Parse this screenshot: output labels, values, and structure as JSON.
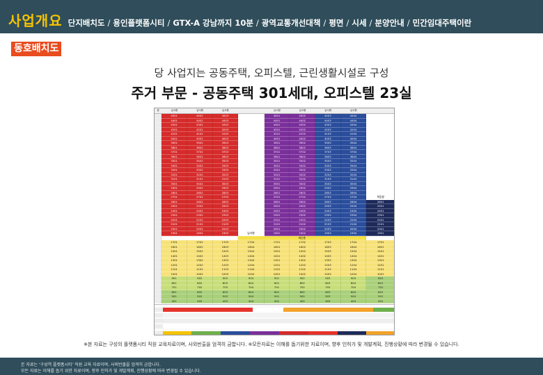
{
  "header": {
    "title": "사업개요",
    "nav": [
      "단지배치도",
      "용인플랫폼시티",
      "GTX-A 강남까지 10분",
      "광역교통개선대책",
      "평면",
      "시세",
      "분양안내",
      "민간임대주택이란"
    ],
    "separator": "/"
  },
  "section_tag": "동호배치도",
  "sub_heading": "당 사업지는 공동주택, 오피스텔, 근린생활시설로 구성",
  "main_heading": "주거 부문 - 공동주택 301세대, 오피스텔 23실",
  "table": {
    "headers": [
      "층",
      "남서향",
      "남서향",
      "남서향",
      "",
      "남서향",
      "남서향",
      "남서향",
      "남서향",
      ""
    ],
    "column_colors": [
      "#e8e8e8",
      "#d62b2b",
      "#d62b2b",
      "#d62b2b",
      "#ffffff",
      "#7a2f9a",
      "#7a2f9a",
      "#2a4d9c",
      "#2a4d9c",
      "#ffffff"
    ],
    "upper_rows": [
      [
        "4501",
        "4502",
        "4503",
        "",
        "4501",
        "4502",
        "4503",
        "4504"
      ],
      [
        "4401",
        "4402",
        "4403",
        "",
        "4401",
        "4402",
        "4403",
        "4404"
      ],
      [
        "4301",
        "4302",
        "4303",
        "",
        "4301",
        "4302",
        "4303",
        "4304"
      ],
      [
        "4201",
        "4202",
        "4203",
        "",
        "4201",
        "4202",
        "4203",
        "4204"
      ],
      [
        "4101",
        "4102",
        "4103",
        "",
        "4101",
        "4102",
        "4103",
        "4104"
      ],
      [
        "4001",
        "4002",
        "4003",
        "",
        "4001",
        "4002",
        "4003",
        "4004"
      ],
      [
        "3901",
        "3902",
        "3903",
        "",
        "3901",
        "3902",
        "3903",
        "3904"
      ],
      [
        "3801",
        "3802",
        "3803",
        "",
        "3801",
        "3802",
        "3803",
        "3804"
      ],
      [
        "3701",
        "3702",
        "3703",
        "",
        "3701",
        "3702",
        "3703",
        "3704"
      ],
      [
        "3601",
        "3602",
        "3603",
        "",
        "3601",
        "3602",
        "3603",
        "3604"
      ],
      [
        "3501",
        "3502",
        "3503",
        "",
        "3501",
        "3502",
        "3503",
        "3504"
      ],
      [
        "3401",
        "3402",
        "3403",
        "",
        "3401",
        "3402",
        "3403",
        "3404"
      ],
      [
        "3301",
        "3302",
        "3303",
        "",
        "3301",
        "3302",
        "3303",
        "3304"
      ],
      [
        "3201",
        "3202",
        "3203",
        "",
        "3201",
        "3202",
        "3203",
        "3204"
      ],
      [
        "3101",
        "3102",
        "3103",
        "",
        "3101",
        "3102",
        "3103",
        "3104"
      ],
      [
        "3001",
        "3002",
        "3003",
        "",
        "3001",
        "3002",
        "3003",
        "3004"
      ],
      [
        "2901",
        "2902",
        "2903",
        "",
        "2901",
        "2902",
        "2903",
        "2904"
      ],
      [
        "2801",
        "2802",
        "2803",
        "",
        "2801",
        "2802",
        "2803",
        "2804"
      ],
      [
        "2701",
        "2702",
        "2703",
        "",
        "2701",
        "2702",
        "2703",
        "2704"
      ],
      [
        "2601",
        "2602",
        "2603",
        "",
        "2601",
        "2602",
        "2603",
        "2604"
      ],
      [
        "2501",
        "2502",
        "2503",
        "",
        "2501",
        "2502",
        "2503",
        "2504"
      ],
      [
        "2401",
        "2402",
        "2403",
        "",
        "2401",
        "2402",
        "2403",
        "2404"
      ],
      [
        "2301",
        "2302",
        "2303",
        "",
        "2301",
        "2302",
        "2303",
        "2304"
      ],
      [
        "2201",
        "2202",
        "2203",
        "",
        "2201",
        "2202",
        "2203",
        "2204"
      ],
      [
        "2101",
        "2102",
        "2103",
        "",
        "2101",
        "2102",
        "2103",
        "2104"
      ],
      [
        "2001",
        "2002",
        "2003",
        "",
        "2001",
        "2002",
        "2003",
        "2004"
      ],
      [
        "1901",
        "1902",
        "1903",
        "남서향",
        "1901",
        "1902",
        "1903",
        "1904"
      ]
    ],
    "office_rows": [
      [
        "2601"
      ],
      [
        "2501"
      ],
      [
        "2401"
      ],
      [
        "2301"
      ],
      [
        "2201"
      ],
      [
        "2101"
      ],
      [
        "2001"
      ],
      [
        "1901"
      ]
    ],
    "office_label": "북동향",
    "refuge_label": "피난층",
    "lower_rows": [
      [
        "1701",
        "1702",
        "1703",
        "1704",
        "1701",
        "1702",
        "1703",
        "1704",
        "1701"
      ],
      [
        "1601",
        "1602",
        "1603",
        "1604",
        "1601",
        "1602",
        "1603",
        "1604",
        "1601"
      ],
      [
        "1501",
        "1502",
        "1503",
        "1504",
        "1501",
        "1502",
        "1503",
        "1504",
        "1501"
      ],
      [
        "1401",
        "1402",
        "1403",
        "1404",
        "1401",
        "1402",
        "1403",
        "1404",
        "1401"
      ],
      [
        "1301",
        "1302",
        "1303",
        "1304",
        "1301",
        "1302",
        "1303",
        "1304",
        "1301"
      ],
      [
        "1201",
        "1202",
        "1203",
        "1204",
        "1201",
        "1202",
        "1203",
        "1204",
        "1201"
      ],
      [
        "1101",
        "1102",
        "1103",
        "1104",
        "1101",
        "1102",
        "1103",
        "1104",
        "1101"
      ],
      [
        "1001",
        "1002",
        "1003",
        "1004",
        "1001",
        "1002",
        "1003",
        "1004",
        "1001"
      ],
      [
        "901",
        "902",
        "903",
        "904",
        "901",
        "902",
        "903",
        "904",
        "901"
      ],
      [
        "801",
        "802",
        "803",
        "804",
        "801",
        "802",
        "803",
        "804",
        "801"
      ],
      [
        "701",
        "702",
        "703",
        "704",
        "701",
        "702",
        "703",
        "704",
        "701"
      ],
      [
        "601",
        "602",
        "603",
        "604",
        "601",
        "602",
        "603",
        "604",
        "601"
      ],
      [
        "501",
        "502",
        "503",
        "504",
        "501",
        "502",
        "503",
        "504",
        "501"
      ],
      [
        "401",
        "402",
        "403",
        "404",
        "401",
        "402",
        "403",
        "404",
        "401"
      ]
    ]
  },
  "note": "※본 자료는 구성의 플랫폼시티 직원 교육자료이며, 사외반출을 엄격히 금합니다. ※모든자료는 이해를 돕기위한 자료이며, 향후 인허가 및 개발계획, 진행상황에 따라 변경될 수 있습니다.",
  "disclaimer": [
    "본 자료는 '구성역 플랫폼시티' 직원 교육 자료이며, 사외반출을 엄격히 금합니다.",
    "모든 자료는 이해를 돕기 위한 자료이며, 향후 인허가 및 개발계획, 진행상황에 따라 변경될 수 있습니다."
  ]
}
